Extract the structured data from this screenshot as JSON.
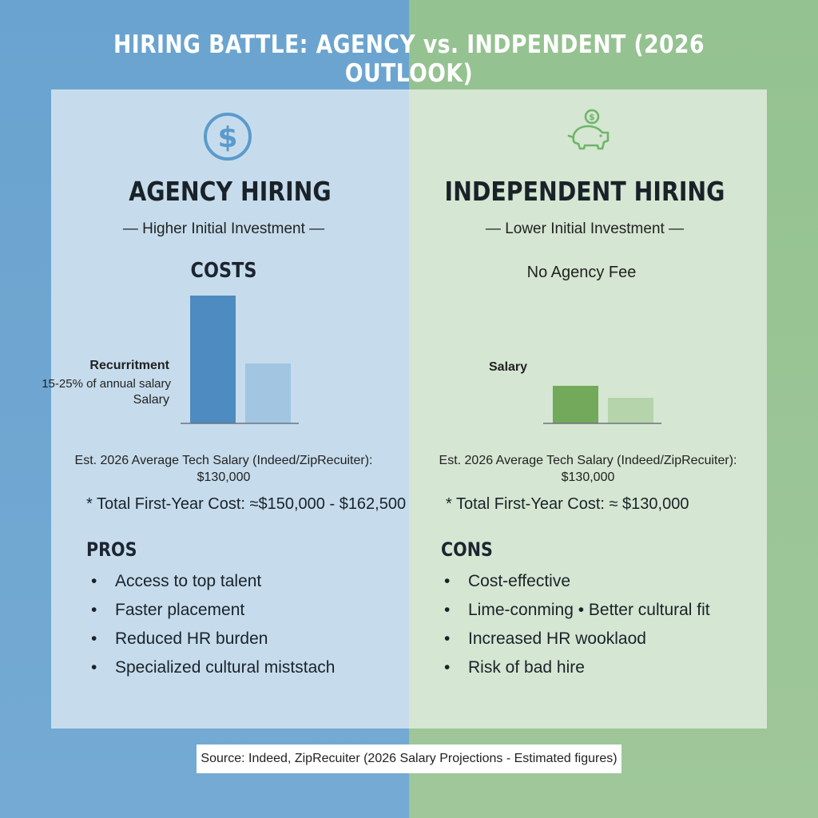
{
  "title": "HIRING BATTLE: AGENCY vs. INDPENDENT (2026 OUTLOOK)",
  "colors": {
    "agency_bar": "#4d8bc0",
    "agency_bar_light": "#a2c5e2",
    "independent_bar": "#73a95a",
    "independent_bar_light": "#b5d4ab",
    "dollar_icon": "#5b9bcc",
    "piggy_icon": "#6fb56a"
  },
  "agency": {
    "icon": "dollar-circle-icon",
    "heading": "AGENCY HIRING",
    "subheading": "— Higher Initial Investment —",
    "costs_title": "COSTS",
    "bar_labels": {
      "recruitment": "Recurritment",
      "fee_range": "15-25% of annual salary",
      "salary": "Salary"
    },
    "est_line1": "Est. 2026 Average Tech Salary (Indeed/ZipRecuiter):",
    "est_line2": "$130,000",
    "total": "* Total First-Year Cost: ≈$150,000 - $162,500",
    "list_title": "PROS",
    "list": [
      "Access to top talent",
      "Faster placement",
      "Reduced HR burden",
      "Specialized cultural miststach"
    ]
  },
  "independent": {
    "icon": "piggy-bank-icon",
    "heading": "INDEPENDENT HIRING",
    "subheading": "— Lower Initial Investment —",
    "no_fee": "No Agency Fee",
    "bar_labels": {
      "salary": "Salary"
    },
    "est_line1": "Est. 2026 Average Tech Salary (Indeed/ZipRecuiter):",
    "est_line2": "$130,000",
    "total": "* Total First-Year Cost: ≈ $130,000",
    "list_title": "CONS",
    "list": [
      "Cost-effective",
      "Lime-conming  •  Better cultural fit",
      "Increased HR wooklaod",
      "Risk of bad hire"
    ]
  },
  "source": "Source: Indeed, ZipRecuiter (2026 Salary Projections - Estimated figures)",
  "chart_data": [
    {
      "type": "bar",
      "categories": [
        "Recurritment",
        "Salary"
      ],
      "values": [
        160,
        75
      ],
      "ylim": [
        0,
        160
      ]
    },
    {
      "type": "bar",
      "categories": [
        "Salary",
        ""
      ],
      "values": [
        47,
        32
      ],
      "ylim": [
        0,
        160
      ]
    }
  ]
}
